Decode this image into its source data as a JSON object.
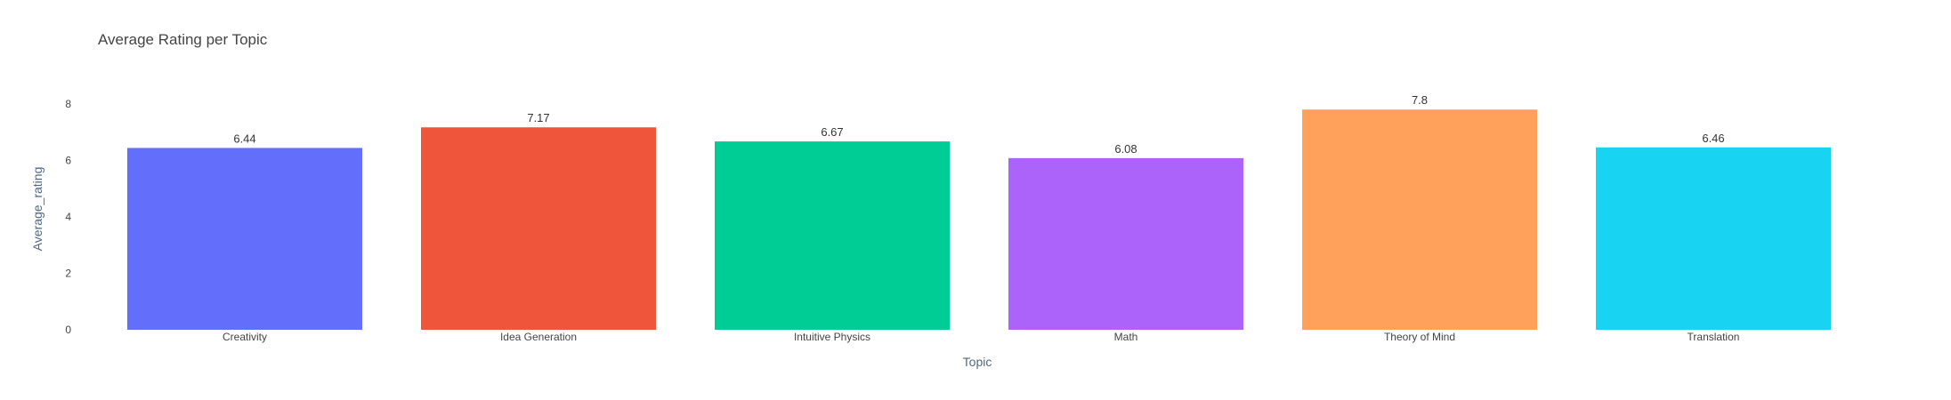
{
  "chart_data": {
    "type": "bar",
    "title": "Average Rating per Topic",
    "xlabel": "Topic",
    "ylabel": "Average_rating",
    "categories": [
      "Creativity",
      "Idea Generation",
      "Intuitive Physics",
      "Math",
      "Theory of Mind",
      "Translation"
    ],
    "values": [
      6.44,
      7.17,
      6.67,
      6.08,
      7.8,
      6.46
    ],
    "value_labels": [
      "6.44",
      "7.17",
      "6.67",
      "6.08",
      "7.8",
      "6.46"
    ],
    "colors": [
      "#636efa",
      "#EF553B",
      "#00cc96",
      "#ab63fa",
      "#FFA15A",
      "#19d3f3"
    ],
    "ylim": [
      0,
      8.5
    ],
    "yticks": [
      0,
      2,
      4,
      6,
      8
    ],
    "grid": false,
    "legend": "none"
  }
}
